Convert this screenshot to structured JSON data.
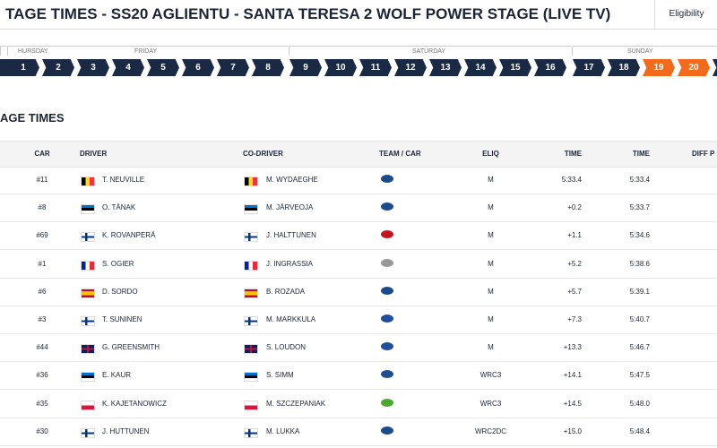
{
  "header": {
    "title": "TAGE TIMES - SS20 AGLIENTU - SANTA TERESA 2 WOLF POWER STAGE (LIVE TV)",
    "button": "Eligibility"
  },
  "days": [
    "HURSDAY",
    "FRIDAY",
    "SATURDAY",
    "SUNDAY"
  ],
  "stages": [
    "1",
    "2",
    "3",
    "4",
    "5",
    "6",
    "7",
    "8",
    "9",
    "10",
    "11",
    "12",
    "13",
    "14",
    "15",
    "16",
    "17",
    "18",
    "19",
    "20"
  ],
  "section_title": "AGE TIMES",
  "table": {
    "columns": [
      "CAR",
      "DRIVER",
      "CO-DRIVER",
      "TEAM / CAR",
      "ELIQ",
      "TIME",
      "TIME",
      "DIFF P"
    ],
    "rows": [
      {
        "car": "#11",
        "driver": "T. NEUVILLE",
        "co_driver": "M. WYDAEGHE",
        "eliq": "M",
        "diff": "5:33.4",
        "time": "5:33.4"
      },
      {
        "car": "#8",
        "driver": "O. TÄNAK",
        "co_driver": "M. JÄRVEOJA",
        "eliq": "M",
        "diff": "+0.2",
        "time": "5:33.7"
      },
      {
        "car": "#69",
        "driver": "K. ROVANPERÄ",
        "co_driver": "J. HALTTUNEN",
        "eliq": "M",
        "diff": "+1.1",
        "time": "5:34.6"
      },
      {
        "car": "#1",
        "driver": "S. OGIER",
        "co_driver": "J. INGRASSIA",
        "eliq": "M",
        "diff": "+5.2",
        "time": "5:38.6"
      },
      {
        "car": "#6",
        "driver": "D. SORDO",
        "co_driver": "B. ROZADA",
        "eliq": "M",
        "diff": "+5.7",
        "time": "5:39.1"
      },
      {
        "car": "#3",
        "driver": "T. SUNINEN",
        "co_driver": "M. MARKKULA",
        "eliq": "M",
        "diff": "+7.3",
        "time": "5:40.7"
      },
      {
        "car": "#44",
        "driver": "G. GREENSMITH",
        "co_driver": "S. LOUDON",
        "eliq": "M",
        "diff": "+13.3",
        "time": "5:46.7"
      },
      {
        "car": "#36",
        "driver": "E. KAUR",
        "co_driver": "S. SIMM",
        "eliq": "WRC3",
        "diff": "+14.1",
        "time": "5:47.5"
      },
      {
        "car": "#35",
        "driver": "K. KAJETANOWICZ",
        "co_driver": "M. SZCZEPANIAK",
        "eliq": "WRC3",
        "diff": "+14.5",
        "time": "5:48.0"
      },
      {
        "car": "#30",
        "driver": "J. HUTTUNEN",
        "co_driver": "M. LUKKA",
        "eliq": "WRC2DC",
        "diff": "+15.0",
        "time": "5:48.4"
      }
    ]
  }
}
